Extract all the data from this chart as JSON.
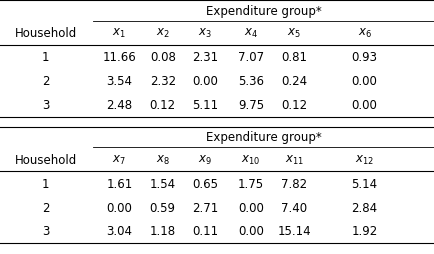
{
  "title1": "Expenditure group*",
  "title2": "Expenditure group*",
  "col_header1": [
    "$x_1$",
    "$x_2$",
    "$x_3$",
    "$x_4$",
    "$x_5$",
    "$x_6$"
  ],
  "col_header2": [
    "$x_7$",
    "$x_8$",
    "$x_9$",
    "$x_{10}$",
    "$x_{11}$",
    "$x_{12}$"
  ],
  "row_header": "Household",
  "rows1": [
    [
      "1",
      "11.66",
      "0.08",
      "2.31",
      "7.07",
      "0.81",
      "0.93"
    ],
    [
      "2",
      "3.54",
      "2.32",
      "0.00",
      "5.36",
      "0.24",
      "0.00"
    ],
    [
      "3",
      "2.48",
      "0.12",
      "5.11",
      "9.75",
      "0.12",
      "0.00"
    ]
  ],
  "rows2": [
    [
      "1",
      "1.61",
      "1.54",
      "0.65",
      "1.75",
      "7.82",
      "5.14"
    ],
    [
      "2",
      "0.00",
      "0.59",
      "2.71",
      "0.00",
      "7.40",
      "2.84"
    ],
    [
      "3",
      "3.04",
      "1.18",
      "0.11",
      "0.00",
      "15.14",
      "1.92"
    ]
  ],
  "bg_color": "#ffffff",
  "text_color": "#000000",
  "font_size": 8.5
}
